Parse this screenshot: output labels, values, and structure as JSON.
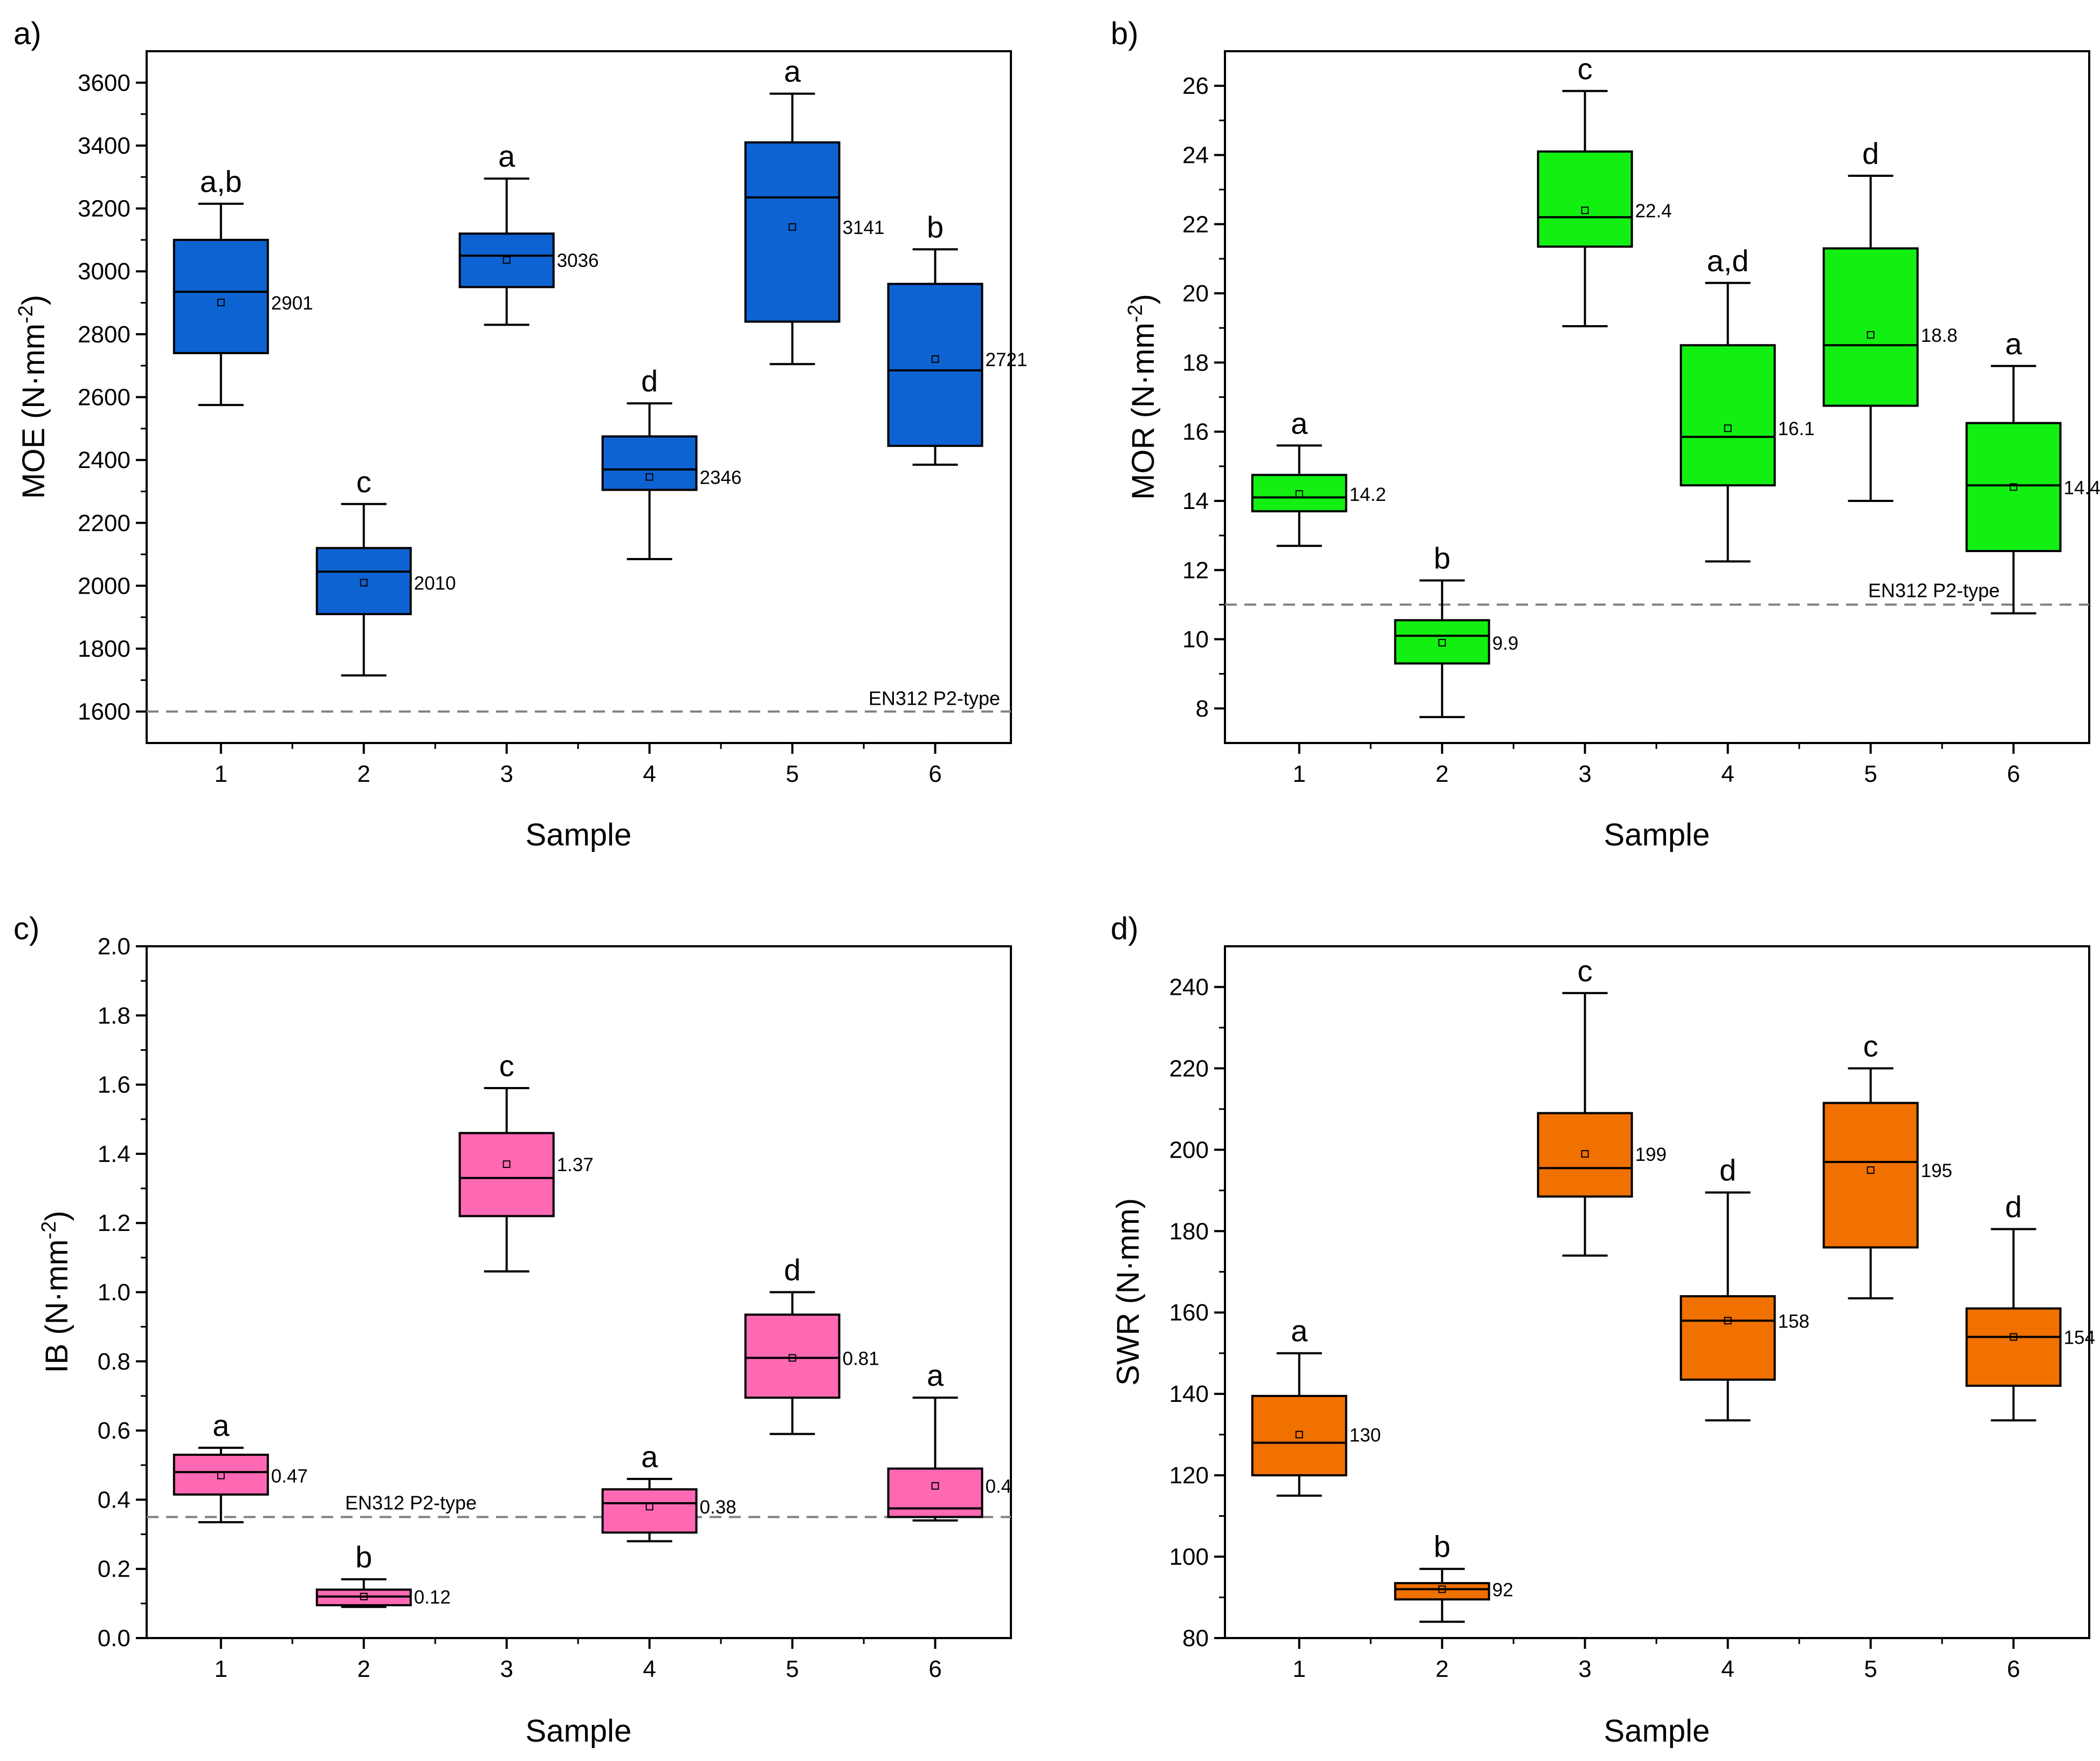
{
  "figure": {
    "panels": [
      {
        "id": "a",
        "label": "a)"
      },
      {
        "id": "b",
        "label": "b)"
      },
      {
        "id": "c",
        "label": "c)"
      },
      {
        "id": "d",
        "label": "d)"
      }
    ]
  },
  "chart_data": [
    {
      "panel": "a)",
      "type": "box",
      "xlabel": "Sample",
      "ylabel": "MOE (N·mm-2)",
      "ylabel_main": "MOE (N·mm",
      "ylabel_sup": "-2",
      "ylabel_close": ")",
      "categories": [
        "1",
        "2",
        "3",
        "4",
        "5",
        "6"
      ],
      "ylim": [
        1500,
        3700
      ],
      "yticks": [
        "1600",
        "1800",
        "2000",
        "2200",
        "2400",
        "2600",
        "2800",
        "3000",
        "3200",
        "3400",
        "3600"
      ],
      "ytick_values": [
        1600,
        1800,
        2000,
        2200,
        2400,
        2600,
        2800,
        3000,
        3200,
        3400,
        3600
      ],
      "color": "#0e63d2",
      "boxes": [
        {
          "sample": "1",
          "whisker_low": 2575,
          "q1": 2740,
          "median": 2935,
          "q3": 3100,
          "whisker_high": 3215,
          "mean": 2901,
          "mean_label": "2901",
          "group": "a,b"
        },
        {
          "sample": "2",
          "whisker_low": 1715,
          "q1": 1910,
          "median": 2045,
          "q3": 2120,
          "whisker_high": 2260,
          "mean": 2010,
          "mean_label": "2010",
          "group": "c"
        },
        {
          "sample": "3",
          "whisker_low": 2830,
          "q1": 2950,
          "median": 3050,
          "q3": 3120,
          "whisker_high": 3295,
          "mean": 3036,
          "mean_label": "3036",
          "group": "a"
        },
        {
          "sample": "4",
          "whisker_low": 2085,
          "q1": 2305,
          "median": 2370,
          "q3": 2475,
          "whisker_high": 2580,
          "mean": 2346,
          "mean_label": "2346",
          "group": "d"
        },
        {
          "sample": "5",
          "whisker_low": 2705,
          "q1": 2840,
          "median": 3235,
          "q3": 3410,
          "whisker_high": 3565,
          "mean": 3141,
          "mean_label": "3141",
          "group": "a"
        },
        {
          "sample": "6",
          "whisker_low": 2385,
          "q1": 2445,
          "median": 2685,
          "q3": 2960,
          "whisker_high": 3070,
          "mean": 2721,
          "mean_label": "2721",
          "group": "b"
        }
      ],
      "reference_line": {
        "value": 1600,
        "label": "EN312 P2-type",
        "label_position": "bottom-right"
      }
    },
    {
      "panel": "b)",
      "type": "box",
      "xlabel": "Sample",
      "ylabel": "MOR (N·mm-2)",
      "ylabel_main": "MOR (N·mm",
      "ylabel_sup": "-2",
      "ylabel_close": ")",
      "categories": [
        "1",
        "2",
        "3",
        "4",
        "5",
        "6"
      ],
      "ylim": [
        7,
        27
      ],
      "yticks": [
        "8",
        "10",
        "12",
        "14",
        "16",
        "18",
        "20",
        "22",
        "24",
        "26"
      ],
      "ytick_values": [
        8,
        10,
        12,
        14,
        16,
        18,
        20,
        22,
        24,
        26
      ],
      "color": "#12f012",
      "boxes": [
        {
          "sample": "1",
          "whisker_low": 12.7,
          "q1": 13.7,
          "median": 14.1,
          "q3": 14.75,
          "whisker_high": 15.6,
          "mean": 14.2,
          "mean_label": "14.2",
          "group": "a"
        },
        {
          "sample": "2",
          "whisker_low": 7.75,
          "q1": 9.3,
          "median": 10.1,
          "q3": 10.55,
          "whisker_high": 11.7,
          "mean": 9.9,
          "mean_label": "9.9",
          "group": "b"
        },
        {
          "sample": "3",
          "whisker_low": 19.05,
          "q1": 21.35,
          "median": 22.2,
          "q3": 24.1,
          "whisker_high": 25.85,
          "mean": 22.4,
          "mean_label": "22.4",
          "group": "c"
        },
        {
          "sample": "4",
          "whisker_low": 12.25,
          "q1": 14.45,
          "median": 15.85,
          "q3": 18.5,
          "whisker_high": 20.3,
          "mean": 16.1,
          "mean_label": "16.1",
          "group": "a,d"
        },
        {
          "sample": "5",
          "whisker_low": 14.0,
          "q1": 16.75,
          "median": 18.5,
          "q3": 21.3,
          "whisker_high": 23.4,
          "mean": 18.8,
          "mean_label": "18.8",
          "group": "d"
        },
        {
          "sample": "6",
          "whisker_low": 10.75,
          "q1": 12.55,
          "median": 14.45,
          "q3": 16.25,
          "whisker_high": 17.9,
          "mean": 14.4,
          "mean_label": "14.4",
          "group": "a"
        }
      ],
      "reference_line": {
        "value": 11,
        "label": "EN312 P2-type",
        "label_position": "right"
      }
    },
    {
      "panel": "c)",
      "type": "box",
      "xlabel": "Sample",
      "ylabel": "IB (N·mm-2)",
      "ylabel_main": "IB (N·mm",
      "ylabel_sup": "-2",
      "ylabel_close": ")",
      "categories": [
        "1",
        "2",
        "3",
        "4",
        "5",
        "6"
      ],
      "ylim": [
        0.0,
        2.0
      ],
      "yticks": [
        "0.0",
        "0.2",
        "0.4",
        "0.6",
        "0.8",
        "1.0",
        "1.2",
        "1.4",
        "1.6",
        "1.8",
        "2.0"
      ],
      "ytick_values": [
        0.0,
        0.2,
        0.4,
        0.6,
        0.8,
        1.0,
        1.2,
        1.4,
        1.6,
        1.8,
        2.0
      ],
      "color": "#ff69b4",
      "boxes": [
        {
          "sample": "1",
          "whisker_low": 0.335,
          "q1": 0.415,
          "median": 0.48,
          "q3": 0.53,
          "whisker_high": 0.55,
          "mean": 0.47,
          "mean_label": "0.47",
          "group": "a"
        },
        {
          "sample": "2",
          "whisker_low": 0.09,
          "q1": 0.095,
          "median": 0.12,
          "q3": 0.14,
          "whisker_high": 0.17,
          "mean": 0.12,
          "mean_label": "0.12",
          "group": "b"
        },
        {
          "sample": "3",
          "whisker_low": 1.06,
          "q1": 1.22,
          "median": 1.33,
          "q3": 1.46,
          "whisker_high": 1.59,
          "mean": 1.37,
          "mean_label": "1.37",
          "group": "c"
        },
        {
          "sample": "4",
          "whisker_low": 0.28,
          "q1": 0.305,
          "median": 0.39,
          "q3": 0.43,
          "whisker_high": 0.46,
          "mean": 0.38,
          "mean_label": "0.38",
          "group": "a"
        },
        {
          "sample": "5",
          "whisker_low": 0.59,
          "q1": 0.695,
          "median": 0.81,
          "q3": 0.935,
          "whisker_high": 1.0,
          "mean": 0.81,
          "mean_label": "0.81",
          "group": "d"
        },
        {
          "sample": "6",
          "whisker_low": 0.34,
          "q1": 0.35,
          "median": 0.375,
          "q3": 0.49,
          "whisker_high": 0.695,
          "mean": 0.44,
          "mean_label": "0.4",
          "group": "a"
        }
      ],
      "reference_line": {
        "value": 0.35,
        "label": "EN312 P2-type",
        "label_position": "left"
      }
    },
    {
      "panel": "d)",
      "type": "box",
      "xlabel": "Sample",
      "ylabel": "SWR (N·mm)",
      "ylabel_main": "SWR (N·mm)",
      "ylabel_sup": "",
      "ylabel_close": "",
      "categories": [
        "1",
        "2",
        "3",
        "4",
        "5",
        "6"
      ],
      "ylim": [
        80,
        250
      ],
      "yticks": [
        "80",
        "100",
        "120",
        "140",
        "160",
        "180",
        "200",
        "220",
        "240"
      ],
      "ytick_values": [
        80,
        100,
        120,
        140,
        160,
        180,
        200,
        220,
        240
      ],
      "color": "#f07000",
      "boxes": [
        {
          "sample": "1",
          "whisker_low": 115,
          "q1": 120,
          "median": 128,
          "q3": 139.5,
          "whisker_high": 150,
          "mean": 130,
          "mean_label": "130",
          "group": "a"
        },
        {
          "sample": "2",
          "whisker_low": 84,
          "q1": 89.5,
          "median": 92,
          "q3": 93.5,
          "whisker_high": 97,
          "mean": 92,
          "mean_label": "92",
          "group": "b"
        },
        {
          "sample": "3",
          "whisker_low": 174,
          "q1": 188.5,
          "median": 195.5,
          "q3": 209,
          "whisker_high": 238.5,
          "mean": 199,
          "mean_label": "199",
          "group": "c"
        },
        {
          "sample": "4",
          "whisker_low": 133.5,
          "q1": 143.5,
          "median": 158,
          "q3": 164,
          "whisker_high": 189.5,
          "mean": 158,
          "mean_label": "158",
          "group": "d"
        },
        {
          "sample": "5",
          "whisker_low": 163.5,
          "q1": 176,
          "median": 197,
          "q3": 211.5,
          "whisker_high": 220,
          "mean": 195,
          "mean_label": "195",
          "group": "c"
        },
        {
          "sample": "6",
          "whisker_low": 133.5,
          "q1": 142,
          "median": 154,
          "q3": 161,
          "whisker_high": 180.5,
          "mean": 154,
          "mean_label": "154",
          "group": "d"
        }
      ],
      "reference_line": null
    }
  ]
}
